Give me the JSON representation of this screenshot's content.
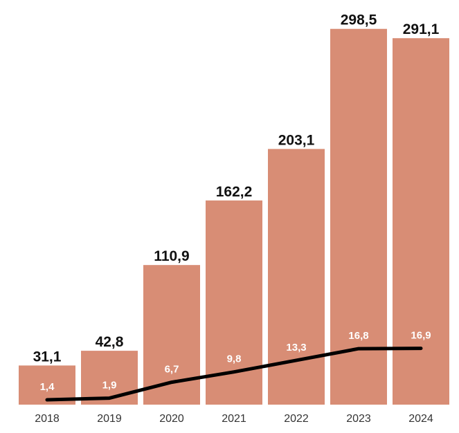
{
  "chart_data": {
    "type": "bar",
    "categories": [
      "2018",
      "2019",
      "2020",
      "2021",
      "2022",
      "2023",
      "2024"
    ],
    "series": [
      {
        "type": "bar",
        "values": [
          31.1,
          42.8,
          110.9,
          162.2,
          203.1,
          298.5,
          291.1
        ],
        "value_labels": [
          "31,1",
          "42,8",
          "110,9",
          "162,2",
          "203,1",
          "298,5",
          "291,1"
        ]
      },
      {
        "type": "line",
        "values": [
          1.4,
          1.9,
          6.7,
          9.8,
          13.3,
          16.8,
          16.9
        ],
        "value_labels": [
          "1,4",
          "1,9",
          "6,7",
          "9,8",
          "13,3",
          "16,8",
          "16,9"
        ]
      }
    ],
    "title": "",
    "xlabel": "",
    "ylabel": "",
    "ylim": [
      0,
      320
    ],
    "grid": false,
    "legend": "none",
    "colors": {
      "bar": "#d88d75",
      "line": "#000000",
      "bar_label": "#111111",
      "line_label": "#ffffff"
    }
  }
}
